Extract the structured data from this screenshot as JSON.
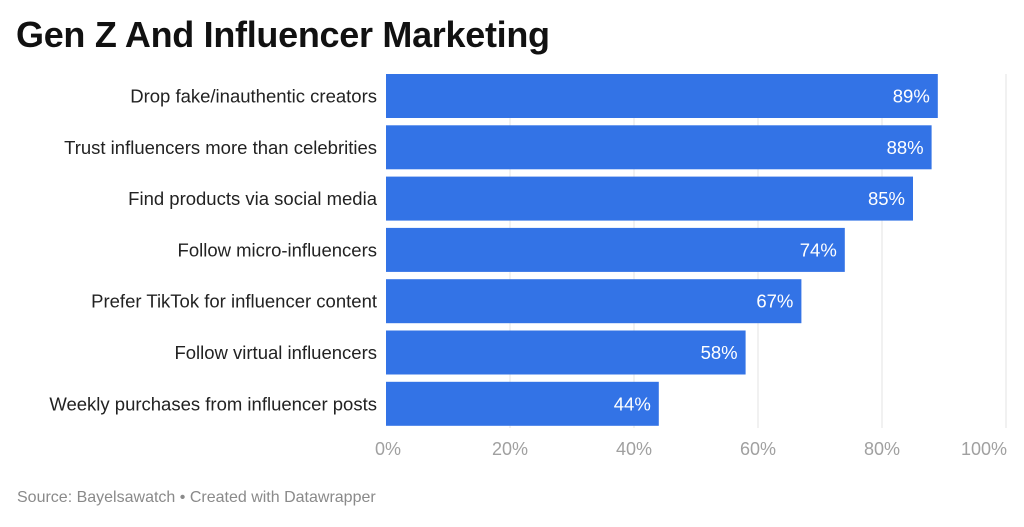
{
  "title": "Gen Z And Influencer Marketing",
  "footer": {
    "source": "Source: Bayelsawatch",
    "separator": "•",
    "credit": "Created with Datawrapper"
  },
  "chart_data": {
    "type": "bar",
    "orientation": "horizontal",
    "title": "Gen Z And Influencer Marketing",
    "categories": [
      "Drop fake/inauthentic creators",
      "Trust influencers more than celebrities",
      "Find products via social media",
      "Follow micro-influencers",
      "Prefer TikTok for influencer content",
      "Follow virtual influencers",
      "Weekly purchases from influencer posts"
    ],
    "values": [
      89,
      88,
      85,
      74,
      67,
      58,
      44
    ],
    "value_labels": [
      "89%",
      "88%",
      "85%",
      "74%",
      "67%",
      "58%",
      "44%"
    ],
    "xlim": [
      0,
      100
    ],
    "ticks": [
      0,
      20,
      40,
      60,
      80,
      100
    ],
    "tick_labels": [
      "0%",
      "20%",
      "40%",
      "60%",
      "80%",
      "100%"
    ],
    "xlabel": "",
    "ylabel": "",
    "grid": true,
    "bar_color": "#3373e6",
    "grid_color": "#e3e3e3"
  }
}
